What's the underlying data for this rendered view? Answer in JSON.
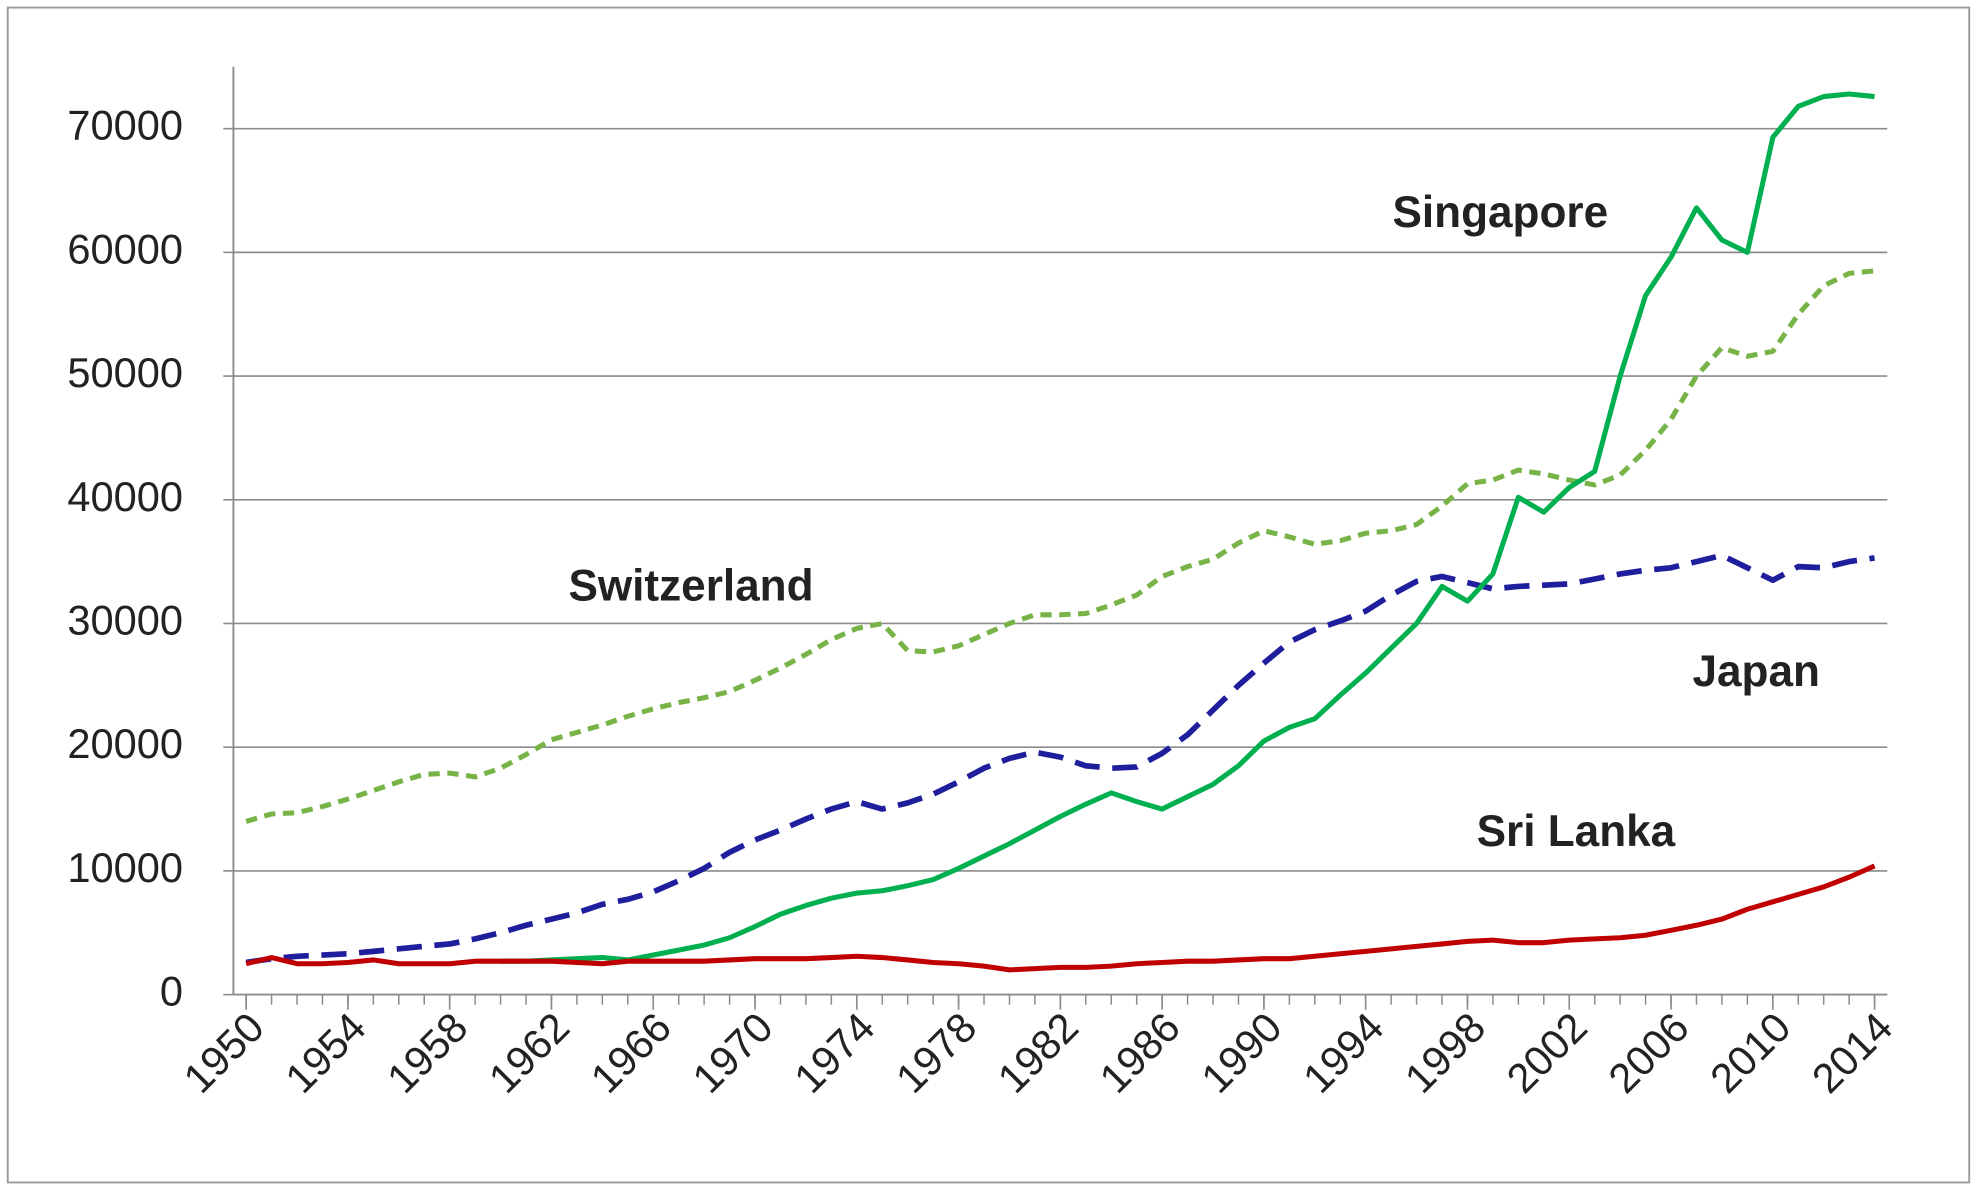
{
  "chart_data": {
    "type": "line",
    "x": [
      1950,
      1951,
      1952,
      1953,
      1954,
      1955,
      1956,
      1957,
      1958,
      1959,
      1960,
      1961,
      1962,
      1963,
      1964,
      1965,
      1966,
      1967,
      1968,
      1969,
      1970,
      1971,
      1972,
      1973,
      1974,
      1975,
      1976,
      1977,
      1978,
      1979,
      1980,
      1981,
      1982,
      1983,
      1984,
      1985,
      1986,
      1987,
      1988,
      1989,
      1990,
      1991,
      1992,
      1993,
      1994,
      1995,
      1996,
      1997,
      1998,
      1999,
      2000,
      2001,
      2002,
      2003,
      2004,
      2005,
      2006,
      2007,
      2008,
      2009,
      2010,
      2011,
      2012,
      2013,
      2014
    ],
    "xlim": [
      1949.5,
      2014.5
    ],
    "xticks": [
      1950,
      1954,
      1958,
      1962,
      1966,
      1970,
      1974,
      1978,
      1982,
      1986,
      1990,
      1994,
      1998,
      2002,
      2006,
      2010,
      2014
    ],
    "ylim": [
      0,
      75000
    ],
    "yticks": [
      0,
      10000,
      20000,
      30000,
      40000,
      50000,
      60000,
      70000
    ],
    "grid": true,
    "series": [
      {
        "name": "Singapore",
        "color": "#00b050",
        "style": "solid",
        "values": [
          null,
          null,
          null,
          null,
          null,
          null,
          null,
          null,
          null,
          null,
          2700,
          2700,
          2800,
          2900,
          3000,
          2800,
          3200,
          3600,
          4000,
          4600,
          5500,
          6500,
          7200,
          7800,
          8200,
          8400,
          8800,
          9300,
          10200,
          11200,
          12200,
          13300,
          14400,
          15400,
          16300,
          15600,
          15000,
          16000,
          17000,
          18500,
          20500,
          21600,
          22300,
          24200,
          26000,
          28000,
          30000,
          33000,
          31800,
          34000,
          40200,
          39000,
          41000,
          42300,
          50000,
          56500,
          59600,
          63600,
          61000,
          60000,
          69300,
          71800,
          72600,
          72800,
          72600
        ]
      },
      {
        "name": "Switzerland",
        "color": "#77b347",
        "style": "dashed",
        "values": [
          14000,
          14600,
          14700,
          15200,
          15800,
          16500,
          17200,
          17800,
          17900,
          17600,
          18300,
          19400,
          20600,
          21200,
          21800,
          22500,
          23100,
          23600,
          24000,
          24500,
          25400,
          26400,
          27500,
          28700,
          29600,
          30000,
          27800,
          27700,
          28200,
          29100,
          30000,
          30700,
          30700,
          30800,
          31500,
          32300,
          33800,
          34600,
          35200,
          36500,
          37500,
          37000,
          36400,
          36700,
          37300,
          37500,
          38000,
          39500,
          41300,
          41600,
          42400,
          42100,
          41600,
          41200,
          42000,
          44000,
          46500,
          50000,
          52300,
          51600,
          52000,
          55000,
          57300,
          58300,
          58500
        ]
      },
      {
        "name": "Japan",
        "color": "#1f1f9e",
        "style": "longdash",
        "values": [
          2600,
          2900,
          3100,
          3200,
          3300,
          3500,
          3700,
          3900,
          4100,
          4500,
          5000,
          5600,
          6100,
          6600,
          7300,
          7700,
          8300,
          9200,
          10200,
          11500,
          12500,
          13300,
          14200,
          15000,
          15600,
          15000,
          15500,
          16200,
          17200,
          18300,
          19100,
          19600,
          19200,
          18500,
          18300,
          18400,
          19500,
          21000,
          23000,
          25000,
          26800,
          28500,
          29500,
          30200,
          31000,
          32300,
          33400,
          33800,
          33300,
          32800,
          33000,
          33100,
          33200,
          33600,
          34000,
          34300,
          34500,
          35000,
          35500,
          34500,
          33500,
          34600,
          34500,
          35000,
          35300
        ]
      },
      {
        "name": "Sri Lanka",
        "color": "#c00000",
        "style": "solid",
        "values": [
          2500,
          3000,
          2500,
          2500,
          2600,
          2800,
          2500,
          2500,
          2500,
          2700,
          2700,
          2700,
          2700,
          2600,
          2500,
          2700,
          2700,
          2700,
          2700,
          2800,
          2900,
          2900,
          2900,
          3000,
          3100,
          3000,
          2800,
          2600,
          2500,
          2300,
          2000,
          2100,
          2200,
          2200,
          2300,
          2500,
          2600,
          2700,
          2700,
          2800,
          2900,
          2900,
          3100,
          3300,
          3500,
          3700,
          3900,
          4100,
          4300,
          4400,
          4200,
          4200,
          4400,
          4500,
          4600,
          4800,
          5200,
          5600,
          6100,
          6900,
          7500,
          8100,
          8700,
          9500,
          10400
        ]
      }
    ]
  }
}
